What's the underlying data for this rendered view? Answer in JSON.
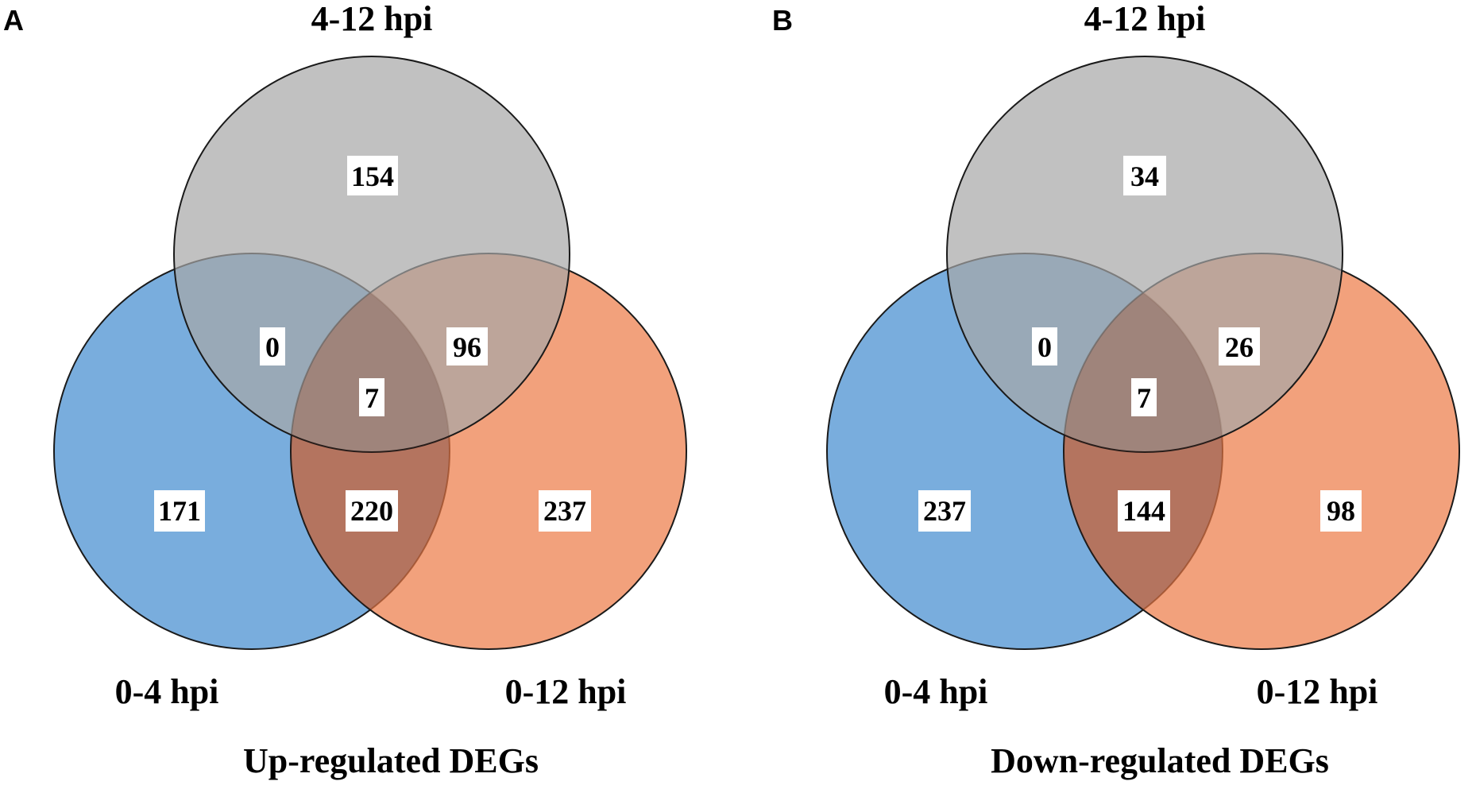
{
  "colors": {
    "set_0_4": "#5b9bd5",
    "set_4_12": "#a6a6a6",
    "set_0_12": "#ed7d4a"
  },
  "panels": [
    {
      "letter": "A",
      "caption": "Up-regulated DEGs",
      "sets": {
        "top": "4-12 hpi",
        "left": "0-4 hpi",
        "right": "0-12 hpi"
      },
      "counts": {
        "only_4_12": "154",
        "left_top": "0",
        "top_right": "96",
        "all_three": "7",
        "only_0_4": "171",
        "left_right": "220",
        "only_0_12": "237"
      }
    },
    {
      "letter": "B",
      "caption": "Down-regulated DEGs",
      "sets": {
        "top": "4-12 hpi",
        "left": "0-4 hpi",
        "right": "0-12 hpi"
      },
      "counts": {
        "only_4_12": "34",
        "left_top": "0",
        "top_right": "26",
        "all_three": "7",
        "only_0_4": "237",
        "left_right": "144",
        "only_0_12": "98"
      }
    }
  ]
}
